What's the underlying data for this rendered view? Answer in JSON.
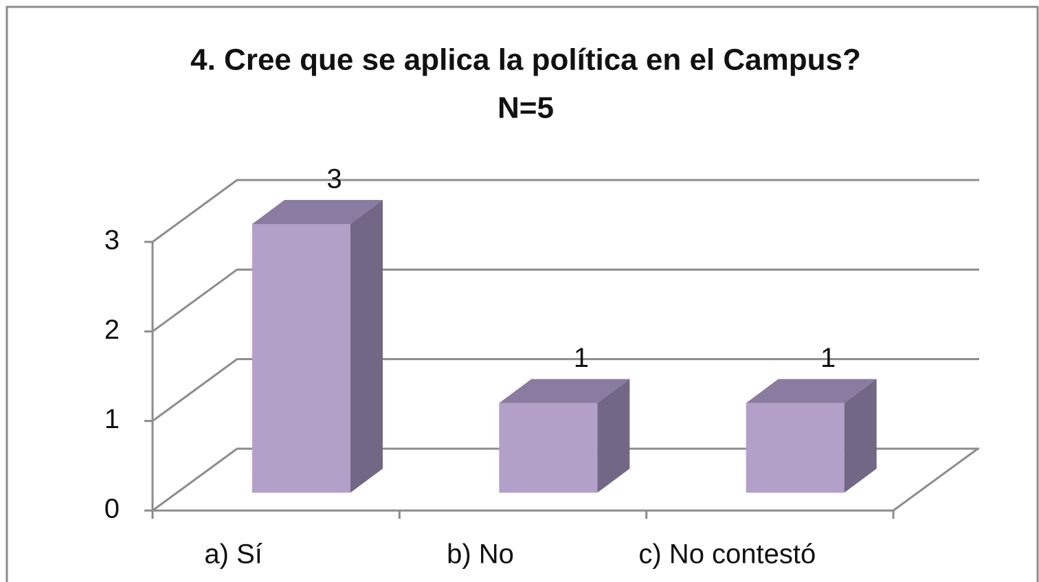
{
  "chart_data": {
    "type": "bar3d",
    "title": "4. Cree que se aplica la política en el Campus?",
    "subtitle": "N=5",
    "categories": [
      "a) Sí",
      "b) No",
      "c) No contestó"
    ],
    "values": [
      3,
      1,
      1
    ],
    "color": "#b3a0c9",
    "ylim": [
      0,
      3
    ],
    "yticks": [
      0,
      1,
      2,
      3
    ],
    "grid": true
  }
}
